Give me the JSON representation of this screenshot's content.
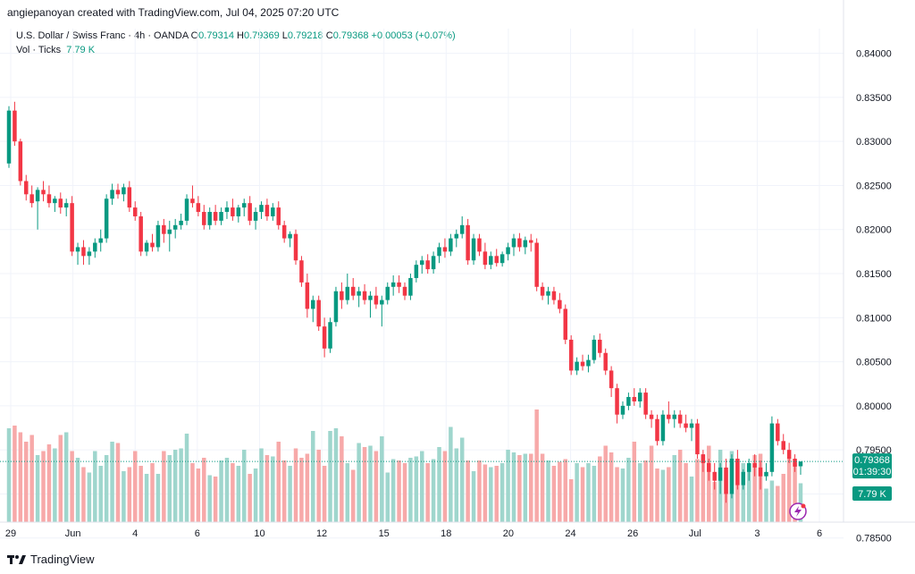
{
  "header": {
    "attribution": "angiepanoyan created with TradingView.com, Jul 04, 2025 07:20 UTC"
  },
  "legend": {
    "symbol": "U.S. Dollar / Swiss Franc · 4h · OANDA",
    "o_label": "O",
    "o_value": "0.79314",
    "h_label": "H",
    "h_value": "0.79369",
    "l_label": "L",
    "l_value": "0.79218",
    "c_label": "C",
    "c_value": "0.79368",
    "change": "+0.00053 (+0.07%)",
    "vol_label": "Vol · Ticks",
    "vol_value": "7.79 K"
  },
  "price_badge": {
    "price": "0.79368",
    "countdown": "01:39:30"
  },
  "volume_badge": "7.79 K",
  "footer": {
    "brand": "TradingView"
  },
  "colors": {
    "up": "#089981",
    "down": "#f23645",
    "up_vol": "#9fd6cd",
    "down_vol": "#f7a9a9"
  },
  "chart_data": {
    "type": "candlestick",
    "ylim": [
      0.7868,
      0.8428
    ],
    "yticks": [
      "0.84000",
      "0.83500",
      "0.83000",
      "0.82500",
      "0.82000",
      "0.81500",
      "0.81000",
      "0.80500",
      "0.80000",
      "0.79500",
      "0.79000",
      "0.78500"
    ],
    "xticks": [
      "29",
      "Jun",
      "4",
      "6",
      "10",
      "12",
      "15",
      "18",
      "20",
      "24",
      "26",
      "Jul",
      "3",
      "6"
    ],
    "last_price": 0.79368,
    "ohlc": [
      [
        0.8275,
        0.834,
        0.827,
        0.8335
      ],
      [
        0.8335,
        0.8345,
        0.8295,
        0.83
      ],
      [
        0.83,
        0.8303,
        0.825,
        0.8255
      ],
      [
        0.8255,
        0.8262,
        0.8233,
        0.824
      ],
      [
        0.824,
        0.825,
        0.8225,
        0.823
      ],
      [
        0.8232,
        0.8248,
        0.82,
        0.8245
      ],
      [
        0.8245,
        0.8255,
        0.8232,
        0.824
      ],
      [
        0.824,
        0.825,
        0.8225,
        0.823
      ],
      [
        0.823,
        0.8238,
        0.822,
        0.8235
      ],
      [
        0.8235,
        0.8242,
        0.8218,
        0.8225
      ],
      [
        0.8225,
        0.8235,
        0.8215,
        0.823
      ],
      [
        0.823,
        0.8238,
        0.817,
        0.8175
      ],
      [
        0.8175,
        0.8185,
        0.816,
        0.818
      ],
      [
        0.818,
        0.8188,
        0.816,
        0.817
      ],
      [
        0.817,
        0.818,
        0.816,
        0.8175
      ],
      [
        0.8175,
        0.819,
        0.8168,
        0.8185
      ],
      [
        0.8185,
        0.82,
        0.8175,
        0.819
      ],
      [
        0.819,
        0.824,
        0.8185,
        0.8235
      ],
      [
        0.8235,
        0.8252,
        0.8228,
        0.8245
      ],
      [
        0.8245,
        0.8252,
        0.8235,
        0.824
      ],
      [
        0.824,
        0.8252,
        0.8232,
        0.8248
      ],
      [
        0.8248,
        0.8255,
        0.822,
        0.8225
      ],
      [
        0.8225,
        0.8232,
        0.821,
        0.8215
      ],
      [
        0.8215,
        0.822,
        0.817,
        0.8175
      ],
      [
        0.8175,
        0.8188,
        0.817,
        0.8185
      ],
      [
        0.8185,
        0.8195,
        0.8175,
        0.818
      ],
      [
        0.818,
        0.821,
        0.8175,
        0.8205
      ],
      [
        0.8205,
        0.8212,
        0.8185,
        0.8195
      ],
      [
        0.8195,
        0.821,
        0.8175,
        0.82
      ],
      [
        0.82,
        0.8212,
        0.819,
        0.8205
      ],
      [
        0.8205,
        0.8218,
        0.82,
        0.821
      ],
      [
        0.821,
        0.824,
        0.8205,
        0.8235
      ],
      [
        0.8235,
        0.825,
        0.8225,
        0.823
      ],
      [
        0.823,
        0.8238,
        0.8215,
        0.822
      ],
      [
        0.822,
        0.8228,
        0.82,
        0.8205
      ],
      [
        0.8205,
        0.8225,
        0.82,
        0.822
      ],
      [
        0.822,
        0.8228,
        0.8205,
        0.821
      ],
      [
        0.821,
        0.8225,
        0.8205,
        0.822
      ],
      [
        0.822,
        0.8232,
        0.8212,
        0.8225
      ],
      [
        0.8225,
        0.8235,
        0.821,
        0.8215
      ],
      [
        0.8215,
        0.8228,
        0.8208,
        0.8225
      ],
      [
        0.8225,
        0.8235,
        0.8215,
        0.823
      ],
      [
        0.823,
        0.8238,
        0.8205,
        0.821
      ],
      [
        0.821,
        0.8225,
        0.82,
        0.822
      ],
      [
        0.822,
        0.8232,
        0.8212,
        0.8228
      ],
      [
        0.8228,
        0.8235,
        0.821,
        0.8215
      ],
      [
        0.8215,
        0.823,
        0.821,
        0.8225
      ],
      [
        0.8225,
        0.8232,
        0.82,
        0.8205
      ],
      [
        0.8205,
        0.821,
        0.8185,
        0.819
      ],
      [
        0.819,
        0.8198,
        0.818,
        0.8195
      ],
      [
        0.8195,
        0.82,
        0.816,
        0.8165
      ],
      [
        0.8165,
        0.817,
        0.8135,
        0.814
      ],
      [
        0.814,
        0.815,
        0.81,
        0.811
      ],
      [
        0.811,
        0.8125,
        0.8095,
        0.812
      ],
      [
        0.812,
        0.8125,
        0.8085,
        0.809
      ],
      [
        0.809,
        0.81,
        0.8055,
        0.8065
      ],
      [
        0.8065,
        0.81,
        0.806,
        0.8095
      ],
      [
        0.8095,
        0.8135,
        0.809,
        0.813
      ],
      [
        0.813,
        0.814,
        0.811,
        0.812
      ],
      [
        0.812,
        0.815,
        0.8115,
        0.8135
      ],
      [
        0.8135,
        0.8145,
        0.812,
        0.8125
      ],
      [
        0.8125,
        0.8135,
        0.8112,
        0.813
      ],
      [
        0.813,
        0.8138,
        0.8115,
        0.812
      ],
      [
        0.812,
        0.813,
        0.81,
        0.8125
      ],
      [
        0.8125,
        0.8135,
        0.811,
        0.8115
      ],
      [
        0.8115,
        0.8125,
        0.809,
        0.812
      ],
      [
        0.812,
        0.814,
        0.8115,
        0.8135
      ],
      [
        0.8135,
        0.8148,
        0.8125,
        0.814
      ],
      [
        0.814,
        0.8148,
        0.8128,
        0.8135
      ],
      [
        0.8135,
        0.814,
        0.812,
        0.8125
      ],
      [
        0.8125,
        0.815,
        0.812,
        0.8145
      ],
      [
        0.8145,
        0.8165,
        0.814,
        0.816
      ],
      [
        0.816,
        0.817,
        0.815,
        0.8165
      ],
      [
        0.8165,
        0.8172,
        0.815,
        0.8155
      ],
      [
        0.8155,
        0.8175,
        0.815,
        0.817
      ],
      [
        0.817,
        0.8185,
        0.8162,
        0.818
      ],
      [
        0.818,
        0.819,
        0.8168,
        0.8175
      ],
      [
        0.8175,
        0.8195,
        0.817,
        0.819
      ],
      [
        0.819,
        0.82,
        0.818,
        0.8195
      ],
      [
        0.8195,
        0.8215,
        0.819,
        0.8205
      ],
      [
        0.8205,
        0.8212,
        0.816,
        0.8165
      ],
      [
        0.8165,
        0.8195,
        0.816,
        0.819
      ],
      [
        0.819,
        0.8195,
        0.817,
        0.8175
      ],
      [
        0.8175,
        0.8185,
        0.8155,
        0.816
      ],
      [
        0.816,
        0.8175,
        0.8155,
        0.817
      ],
      [
        0.817,
        0.8178,
        0.8158,
        0.8162
      ],
      [
        0.8162,
        0.8175,
        0.8158,
        0.8172
      ],
      [
        0.8172,
        0.8185,
        0.8165,
        0.818
      ],
      [
        0.818,
        0.8195,
        0.817,
        0.819
      ],
      [
        0.819,
        0.8196,
        0.8175,
        0.818
      ],
      [
        0.818,
        0.8192,
        0.8172,
        0.8188
      ],
      [
        0.8188,
        0.8195,
        0.8175,
        0.8185
      ],
      [
        0.8185,
        0.819,
        0.813,
        0.8135
      ],
      [
        0.8135,
        0.814,
        0.812,
        0.8125
      ],
      [
        0.8125,
        0.8135,
        0.8115,
        0.813
      ],
      [
        0.813,
        0.8135,
        0.8115,
        0.812
      ],
      [
        0.812,
        0.8128,
        0.8105,
        0.811
      ],
      [
        0.811,
        0.8115,
        0.807,
        0.8075
      ],
      [
        0.8075,
        0.808,
        0.8035,
        0.804
      ],
      [
        0.804,
        0.8055,
        0.8035,
        0.805
      ],
      [
        0.805,
        0.8058,
        0.804,
        0.8045
      ],
      [
        0.8045,
        0.8058,
        0.8038,
        0.8052
      ],
      [
        0.8052,
        0.808,
        0.8048,
        0.8075
      ],
      [
        0.8075,
        0.8082,
        0.8055,
        0.806
      ],
      [
        0.806,
        0.8065,
        0.8035,
        0.804
      ],
      [
        0.804,
        0.8045,
        0.801,
        0.802
      ],
      [
        0.802,
        0.8025,
        0.798,
        0.799
      ],
      [
        0.799,
        0.8005,
        0.7985,
        0.8
      ],
      [
        0.8,
        0.8015,
        0.7995,
        0.801
      ],
      [
        0.801,
        0.802,
        0.8,
        0.8005
      ],
      [
        0.8005,
        0.802,
        0.7998,
        0.8015
      ],
      [
        0.8015,
        0.802,
        0.7985,
        0.799
      ],
      [
        0.799,
        0.7995,
        0.7975,
        0.7985
      ],
      [
        0.7985,
        0.799,
        0.7955,
        0.796
      ],
      [
        0.796,
        0.7995,
        0.7955,
        0.799
      ],
      [
        0.799,
        0.8005,
        0.798,
        0.7985
      ],
      [
        0.7985,
        0.7995,
        0.7975,
        0.799
      ],
      [
        0.799,
        0.7995,
        0.7975,
        0.798
      ],
      [
        0.798,
        0.799,
        0.797,
        0.7975
      ],
      [
        0.7975,
        0.7985,
        0.796,
        0.798
      ],
      [
        0.798,
        0.7985,
        0.794,
        0.7945
      ],
      [
        0.7945,
        0.795,
        0.7925,
        0.7935
      ],
      [
        0.7935,
        0.794,
        0.7915,
        0.7925
      ],
      [
        0.7925,
        0.7935,
        0.7905,
        0.7915
      ],
      [
        0.7915,
        0.7935,
        0.79,
        0.793
      ],
      [
        0.793,
        0.794,
        0.789,
        0.79
      ],
      [
        0.79,
        0.7945,
        0.7895,
        0.794
      ],
      [
        0.794,
        0.795,
        0.7905,
        0.791
      ],
      [
        0.791,
        0.7928,
        0.7905,
        0.7925
      ],
      [
        0.7925,
        0.794,
        0.7915,
        0.7935
      ],
      [
        0.7935,
        0.7945,
        0.792,
        0.793
      ],
      [
        0.793,
        0.7938,
        0.7905,
        0.792
      ],
      [
        0.792,
        0.7935,
        0.7915,
        0.7925
      ],
      [
        0.7925,
        0.7988,
        0.792,
        0.798
      ],
      [
        0.798,
        0.7985,
        0.7955,
        0.796
      ],
      [
        0.796,
        0.7968,
        0.7945,
        0.795
      ],
      [
        0.795,
        0.7958,
        0.7935,
        0.794
      ],
      [
        0.794,
        0.7945,
        0.7925,
        0.7931
      ],
      [
        0.79314,
        0.79369,
        0.79218,
        0.79368
      ]
    ],
    "volume": [
      70,
      72,
      67,
      60,
      65,
      50,
      53,
      58,
      55,
      65,
      67,
      53,
      48,
      41,
      37,
      53,
      42,
      50,
      60,
      59,
      38,
      41,
      53,
      42,
      36,
      44,
      36,
      53,
      50,
      54,
      55,
      66,
      44,
      40,
      48,
      35,
      34,
      46,
      48,
      44,
      42,
      54,
      36,
      40,
      55,
      50,
      49,
      60,
      46,
      42,
      55,
      48,
      51,
      68,
      54,
      42,
      68,
      70,
      64,
      44,
      39,
      59,
      56,
      57,
      53,
      64,
      37,
      47,
      46,
      44,
      48,
      49,
      53,
      44,
      47,
      56,
      53,
      71,
      55,
      63,
      46,
      38,
      46,
      43,
      41,
      42,
      44,
      54,
      52,
      50,
      51,
      51,
      84,
      51,
      46,
      42,
      45,
      47,
      32,
      44,
      41,
      44,
      42,
      49,
      57,
      52,
      41,
      40,
      48,
      60,
      44,
      46,
      57,
      40,
      39,
      41,
      50,
      54,
      44,
      34,
      47,
      50,
      57,
      30,
      54,
      39,
      53,
      44,
      44,
      43,
      50,
      51,
      25,
      31,
      27,
      36,
      48,
      44,
      29,
      22,
      24,
      26,
      21,
      12
    ]
  }
}
